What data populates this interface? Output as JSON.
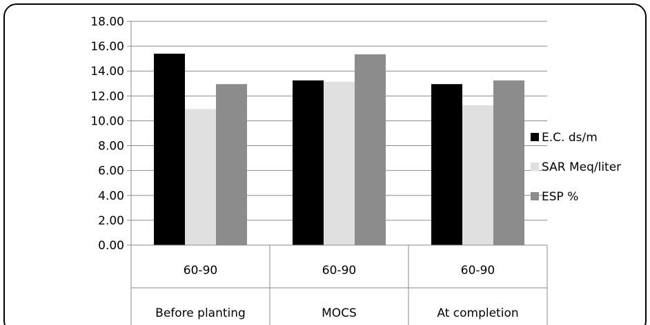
{
  "chart_data": {
    "type": "bar",
    "categories": [
      {
        "sub": "60-90",
        "group": "Before planting"
      },
      {
        "sub": "60-90",
        "group": "MOCS"
      },
      {
        "sub": "60-90",
        "group": "At completion"
      }
    ],
    "series": [
      {
        "name": "E.C. ds/m",
        "color": "#000000",
        "values": [
          15.4,
          13.25,
          12.95
        ]
      },
      {
        "name": "SAR Meq/liter",
        "color": "#e0e0e0",
        "values": [
          10.95,
          13.15,
          11.25
        ]
      },
      {
        "name": "ESP %",
        "color": "#8c8c8c",
        "values": [
          12.95,
          15.35,
          13.25
        ]
      }
    ],
    "ylim": [
      0,
      18
    ],
    "yticks": [
      "0.00",
      "2.00",
      "4.00",
      "6.00",
      "8.00",
      "10.00",
      "12.00",
      "14.00",
      "16.00",
      "18.00"
    ],
    "grid": true,
    "legend_position": "right"
  }
}
